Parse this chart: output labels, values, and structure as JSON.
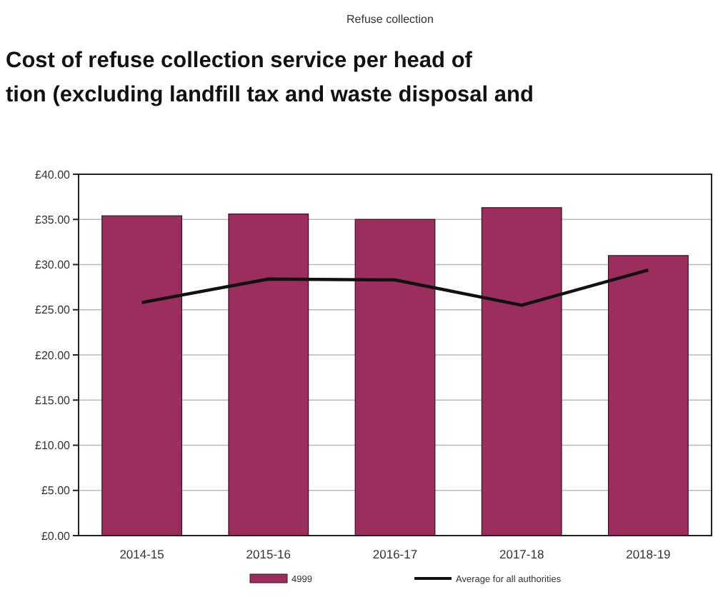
{
  "chart_data": {
    "type": "bar",
    "title": "Cost of refuse collection service per head of\ntion (excluding landfill tax and waste disposal and",
    "annotations": [
      "Refuse collection"
    ],
    "categories": [
      "2014-15",
      "2015-16",
      "2016-17",
      "2017-18",
      "2018-19"
    ],
    "series": [
      {
        "name": "4999",
        "color": "#9b2d5f",
        "values": [
          35.4,
          35.6,
          35.0,
          36.3,
          31.0
        ]
      },
      {
        "name": "Average for all authorities",
        "type": "line",
        "color": "#111111",
        "values": [
          25.8,
          28.4,
          28.3,
          25.5,
          29.4
        ]
      }
    ],
    "ylim": [
      0,
      40
    ],
    "yticks": [
      {
        "value": 0,
        "label": "£0.00"
      },
      {
        "value": 5,
        "label": "£5.00"
      },
      {
        "value": 10,
        "label": "£10.00"
      },
      {
        "value": 15,
        "label": "£15.00"
      },
      {
        "value": 20,
        "label": "£20.00"
      },
      {
        "value": 25,
        "label": "£25.00"
      },
      {
        "value": 30,
        "label": "£30.00"
      },
      {
        "value": 35,
        "label": "£35.00"
      },
      {
        "value": 40,
        "label": "£40.00"
      }
    ],
    "grid": "y",
    "legend": "bottom",
    "marker": "none",
    "line_style": "solid"
  }
}
